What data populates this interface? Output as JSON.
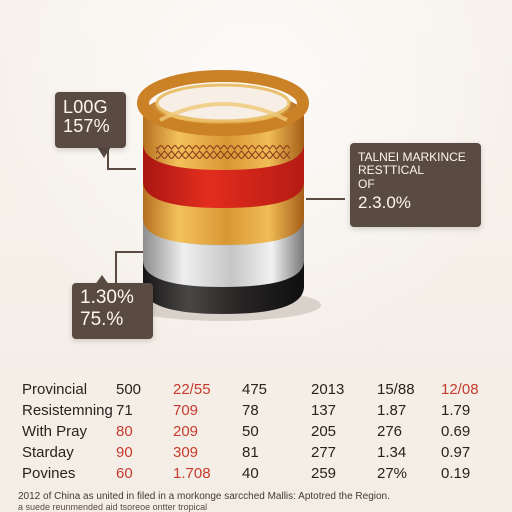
{
  "callouts": {
    "left_top": {
      "line1": "L00G",
      "line2": "157%"
    },
    "right": {
      "line1": "TALNEI MARKINCE",
      "line2": "RESTTICAL",
      "line3": "OF",
      "line4": "2.3.0%"
    },
    "left_bottom": {
      "line1": "1.30%",
      "line2": "75.%"
    }
  },
  "table": {
    "rows": [
      [
        "Provincial",
        "500",
        "22/55",
        "475",
        "2013",
        "15/88",
        "12/08"
      ],
      [
        "Resistemning",
        "71",
        "709",
        "78",
        "137",
        "1.87",
        "1.79"
      ],
      [
        "With Pray",
        "80",
        "209",
        "50",
        "205",
        "276",
        "0.69"
      ],
      [
        "Starday",
        "90",
        "309",
        "81",
        "277",
        "1.34",
        "0.97"
      ],
      [
        "Povines",
        "60",
        "1.708",
        "40",
        "259",
        "27%",
        "0.19"
      ]
    ],
    "red_cells": [
      [
        0,
        2
      ],
      [
        0,
        6
      ],
      [
        1,
        2
      ],
      [
        2,
        1
      ],
      [
        2,
        2
      ],
      [
        3,
        1
      ],
      [
        3,
        2
      ],
      [
        4,
        1
      ],
      [
        4,
        2
      ]
    ]
  },
  "footer": {
    "line1": "2012 of China as united in filed in a morkonge sarcched Mallis: Aptotred the Region.",
    "line2": "a suede reunmended aid tsoreoe ontter tropical"
  },
  "colors": {
    "background": "#f6f1ea",
    "callout": "#5a4b42",
    "gold": "#d59b34",
    "red": "#d92719",
    "silver": "#b8b8b8",
    "black": "#2b2726"
  },
  "icons": {
    "main_visual": "stacked-ring-cylinder"
  }
}
